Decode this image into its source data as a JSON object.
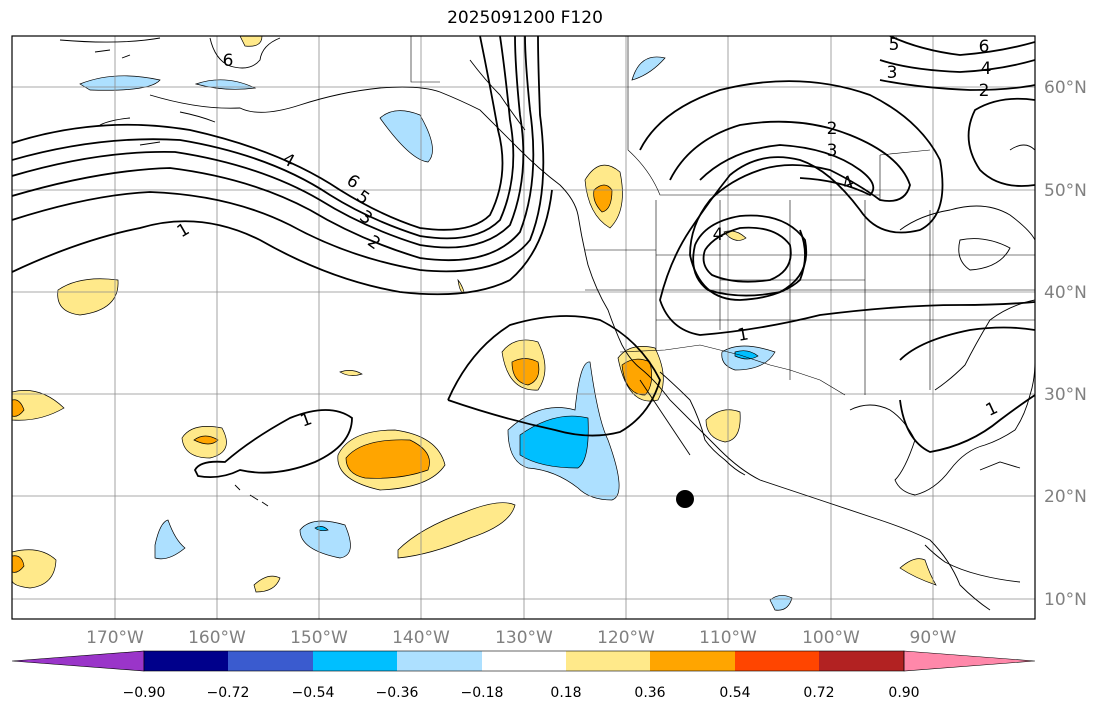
{
  "title": "2025091200 F120",
  "longitude_labels": [
    "170°W",
    "160°W",
    "150°W",
    "140°W",
    "130°W",
    "120°W",
    "110°W",
    "100°W",
    "90°W"
  ],
  "latitude_labels": [
    "60°N",
    "50°N",
    "40°N",
    "30°N",
    "20°N",
    "10°N"
  ],
  "contour_labels": [
    "6",
    "4",
    "6",
    "5",
    "3",
    "2",
    "1",
    "1",
    "1",
    "1",
    "2",
    "3",
    "4",
    "4",
    "6",
    "4",
    "2",
    "5",
    "3"
  ],
  "colorbar": {
    "tick_labels": [
      "−0.90",
      "−0.72",
      "−0.54",
      "−0.36",
      "−0.18",
      "0.18",
      "0.36",
      "0.54",
      "0.72",
      "0.90"
    ],
    "colors": [
      "#9a35c9",
      "#00008b",
      "#3a5bcf",
      "#00bfff",
      "#ade0ff",
      "#ffffff",
      "#ffe98a",
      "#ffa500",
      "#ff4500",
      "#b22222",
      "#ff88aa"
    ]
  },
  "colors": {
    "grid": "#8c8c8c",
    "contour": "#000000",
    "land": "#000000",
    "marker": "#000000"
  }
}
